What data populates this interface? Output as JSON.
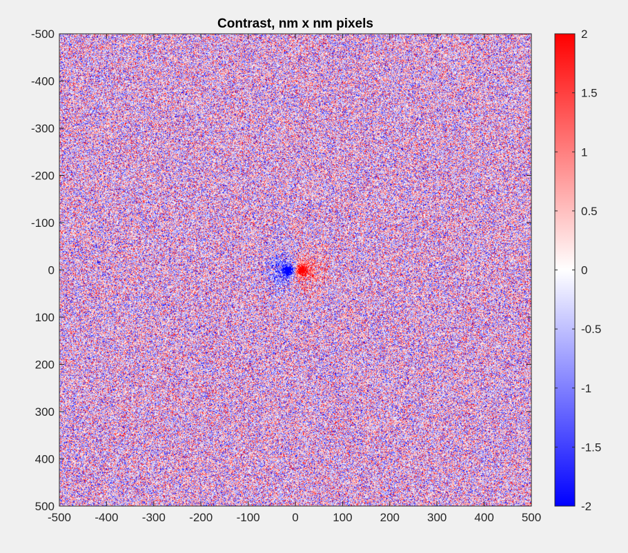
{
  "chart_data": {
    "type": "heatmap",
    "title": "Contrast, nm x nm pixels",
    "xlabel": "",
    "ylabel": "",
    "xlim": [
      -500,
      500
    ],
    "ylim": [
      -500,
      500
    ],
    "y_direction": "reverse",
    "x_ticks": [
      -500,
      -400,
      -300,
      -200,
      -100,
      0,
      100,
      200,
      300,
      400,
      500
    ],
    "x_tick_labels": [
      "-500",
      "-400",
      "-300",
      "-200",
      "-100",
      "0",
      "100",
      "200",
      "300",
      "400",
      "500"
    ],
    "y_ticks": [
      -500,
      -400,
      -300,
      -200,
      -100,
      0,
      100,
      200,
      300,
      400,
      500
    ],
    "y_tick_labels": [
      "-500",
      "-400",
      "-300",
      "-200",
      "-100",
      "0",
      "100",
      "200",
      "300",
      "400",
      "500"
    ],
    "color_limits": [
      -2,
      2
    ],
    "colormap": [
      "#0000ff",
      "#ffffff",
      "#ff0000"
    ],
    "colorbar": {
      "placement": "right",
      "ticks": [
        -2,
        -1.5,
        -1,
        -0.5,
        0,
        0.5,
        1,
        1.5,
        2
      ],
      "tick_labels": [
        "-2",
        "-1.5",
        "-1",
        "-0.5",
        "0",
        "0.5",
        "1",
        "1.5",
        "2"
      ]
    },
    "features": [
      {
        "x": -15,
        "y": 0,
        "value": -2
      },
      {
        "x": 12,
        "y": 0,
        "value": 2
      }
    ],
    "grid": false
  },
  "colors": {
    "background": "#f0f0f0",
    "axis": "#262626",
    "negative": "#0000ff",
    "zero": "#ffffff",
    "positive": "#ff0000"
  }
}
